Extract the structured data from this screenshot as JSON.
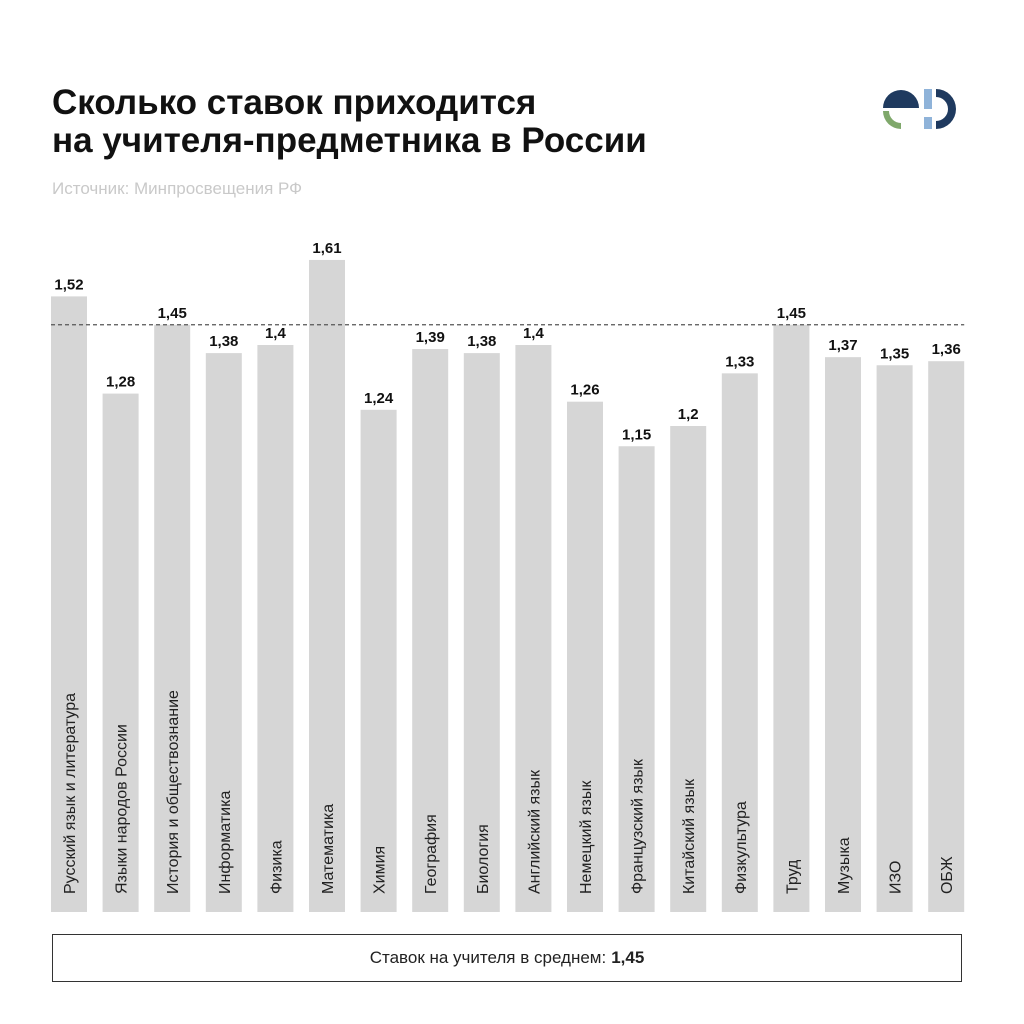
{
  "header": {
    "title_line1": "Сколько ставок приходится",
    "title_line2": "на учителя-предметника в России",
    "source": "Источник: Минпросвещения РФ"
  },
  "logo": {
    "name": "ed-logo",
    "colors": [
      "#1f3a5f",
      "#7fa86b",
      "#8fb3d9"
    ]
  },
  "chart_data": {
    "type": "bar",
    "categories": [
      "Русский язык и литература",
      "Языки народов России",
      "История и обществознание",
      "Информатика",
      "Физика",
      "Математика",
      "Химия",
      "География",
      "Биология",
      "Английский язык",
      "Немецкий язык",
      "Французский язык",
      "Китайский язык",
      "Физкультура",
      "Труд",
      "Музыка",
      "ИЗО",
      "ОБЖ"
    ],
    "values": [
      1.52,
      1.28,
      1.45,
      1.38,
      1.4,
      1.61,
      1.24,
      1.39,
      1.38,
      1.4,
      1.26,
      1.15,
      1.2,
      1.33,
      1.45,
      1.37,
      1.35,
      1.36
    ],
    "value_labels": [
      "1,52",
      "1,28",
      "1,45",
      "1,38",
      "1,4",
      "1,61",
      "1,24",
      "1,39",
      "1,38",
      "1,4",
      "1,26",
      "1,15",
      "1,2",
      "1,33",
      "1,45",
      "1,37",
      "1,35",
      "1,36"
    ],
    "average": 1.45,
    "average_line": "dashed",
    "bar_color": "#d6d6d6",
    "grid": false
  },
  "summary": {
    "label": "Ставок на учителя в среднем:",
    "value": "1,45"
  }
}
